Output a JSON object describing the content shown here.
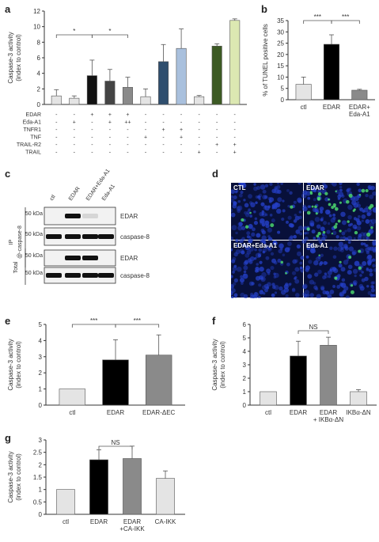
{
  "panel_labels": {
    "a": "a",
    "b": "b",
    "c": "c",
    "d": "d",
    "e": "e",
    "f": "f",
    "g": "g"
  },
  "colors": {
    "black": "#000000",
    "white": "#ffffff",
    "gray_light": "#dcdcdc",
    "gray_mid": "#8a8a8a",
    "blue_dark": "#2f4e6e",
    "blue_light": "#a9c0dd",
    "olive_dark": "#3c5a24",
    "olive_light": "#dce8b2",
    "gray_white": "#e4e4e4",
    "micro_bg": "#08103a",
    "micro_blue": "#2540c8",
    "micro_green": "#4fe070"
  },
  "chart_data": [
    {
      "id": "a",
      "type": "bar",
      "ylabel": "Caspase-3 activity (index to control)",
      "ylim": [
        0,
        12
      ],
      "yticks": [
        "0",
        "2",
        "4",
        "6",
        "8",
        "10",
        "12"
      ],
      "values": [
        1.1,
        0.8,
        3.7,
        3.0,
        2.2,
        1.0,
        5.5,
        7.2,
        1.0,
        7.5,
        10.8
      ],
      "errors": [
        0.8,
        0.3,
        2.0,
        1.5,
        1.3,
        1.0,
        2.2,
        2.5,
        0.15,
        0.3,
        0.2
      ],
      "bar_colors": [
        "#e4e4e4",
        "#e4e4e4",
        "#111111",
        "#444444",
        "#8a8a8a",
        "#e4e4e4",
        "#2f4e6e",
        "#a9c0dd",
        "#e4e4e4",
        "#3c5a24",
        "#dce8b2"
      ],
      "rows": [
        {
          "label": "EDAR",
          "cells": [
            "-",
            "-",
            "+",
            "+",
            "+",
            "-",
            "-",
            "-",
            "-",
            "-",
            "-"
          ]
        },
        {
          "label": "Eda-A1",
          "cells": [
            "-",
            "+",
            "-",
            "+",
            "++",
            "-",
            "-",
            "-",
            "-",
            "-",
            "-"
          ]
        },
        {
          "label": "TNFR1",
          "cells": [
            "-",
            "-",
            "-",
            "-",
            "-",
            "-",
            "+",
            "+",
            "-",
            "-",
            "-"
          ]
        },
        {
          "label": "TNF",
          "cells": [
            "-",
            "-",
            "-",
            "-",
            "-",
            "+",
            "-",
            "+",
            "-",
            "-",
            "-"
          ]
        },
        {
          "label": "TRAIL-R2",
          "cells": [
            "-",
            "-",
            "-",
            "-",
            "-",
            "-",
            "-",
            "-",
            "-",
            "+",
            "+"
          ]
        },
        {
          "label": "TRAIL",
          "cells": [
            "-",
            "-",
            "-",
            "-",
            "-",
            "-",
            "-",
            "-",
            "+",
            "-",
            "+"
          ]
        }
      ],
      "significance": [
        "*",
        "*"
      ]
    },
    {
      "id": "b",
      "type": "bar",
      "ylabel": "% of TUNEL positive cells",
      "ylim": [
        0,
        35
      ],
      "yticks": [
        "0",
        "5",
        "10",
        "15",
        "20",
        "25",
        "30",
        "35"
      ],
      "categories": [
        "ctl",
        "EDAR",
        "EDAR+ Eda-A1"
      ],
      "values": [
        6.8,
        24.5,
        4.2
      ],
      "errors": [
        3.2,
        4.2,
        0.4
      ],
      "bar_colors": [
        "#e4e4e4",
        "#000000",
        "#8a8a8a"
      ],
      "significance": [
        "***",
        "***"
      ]
    },
    {
      "id": "e",
      "type": "bar",
      "ylabel": "Caspase-3 activity (index to control)",
      "ylim": [
        0,
        5
      ],
      "yticks": [
        "0",
        "1",
        "2",
        "3",
        "4",
        "5"
      ],
      "categories": [
        "ctl",
        "EDAR",
        "EDAR-ΔEC"
      ],
      "values": [
        1.0,
        2.8,
        3.1
      ],
      "errors": [
        0,
        1.25,
        1.25
      ],
      "bar_colors": [
        "#e4e4e4",
        "#000000",
        "#8a8a8a"
      ],
      "significance": [
        "***",
        "***"
      ]
    },
    {
      "id": "f",
      "type": "bar",
      "ylabel": "Caspase-3 activity (index to control)",
      "ylim": [
        0,
        6
      ],
      "yticks": [
        "0",
        "1",
        "2",
        "3",
        "4",
        "5",
        "6"
      ],
      "categories": [
        "ctl",
        "EDAR",
        "EDAR + IKBα-ΔN",
        "IKBα-ΔN"
      ],
      "values": [
        1.0,
        3.65,
        4.45,
        1.0
      ],
      "errors": [
        0,
        1.1,
        0.6,
        0.15
      ],
      "bar_colors": [
        "#e4e4e4",
        "#000000",
        "#8a8a8a",
        "#e4e4e4"
      ],
      "significance": [
        "NS"
      ]
    },
    {
      "id": "g",
      "type": "bar",
      "ylabel": "Caspase-3 activity (index to control)",
      "ylim": [
        0,
        3
      ],
      "yticks": [
        "0",
        "0.5",
        "1",
        "1.5",
        "2",
        "2.5",
        "3"
      ],
      "categories": [
        "ctl",
        "EDAR",
        "EDAR +CA-IKK",
        "CA-IKK"
      ],
      "values": [
        1.0,
        2.2,
        2.25,
        1.45
      ],
      "errors": [
        0,
        0.4,
        0.5,
        0.3
      ],
      "bar_colors": [
        "#e4e4e4",
        "#000000",
        "#8a8a8a",
        "#e4e4e4"
      ],
      "significance": [
        "NS"
      ]
    }
  ],
  "blot": {
    "lanes": [
      "ctl",
      "EDAR",
      "EDAR+Eda-A1",
      "Eda-A1"
    ],
    "ip_label": "IP",
    "ip_target": "@-caspase-8",
    "total_label": "Total",
    "kda": "50 kDa",
    "rows": [
      {
        "name": "EDAR",
        "group": "ip",
        "bands": [
          0,
          1.0,
          0.12,
          0
        ]
      },
      {
        "name": "caspase-8",
        "group": "ip",
        "bands": [
          1.0,
          1.0,
          1.0,
          1.0
        ]
      },
      {
        "name": "EDAR",
        "group": "total",
        "bands": [
          0,
          1.0,
          1.0,
          0
        ]
      },
      {
        "name": "caspase-8",
        "group": "total",
        "bands": [
          1.0,
          1.0,
          1.0,
          1.0
        ]
      }
    ]
  },
  "micrographs": [
    "CTL",
    "EDAR",
    "EDAR+Eda-A1",
    "Eda-A1"
  ]
}
